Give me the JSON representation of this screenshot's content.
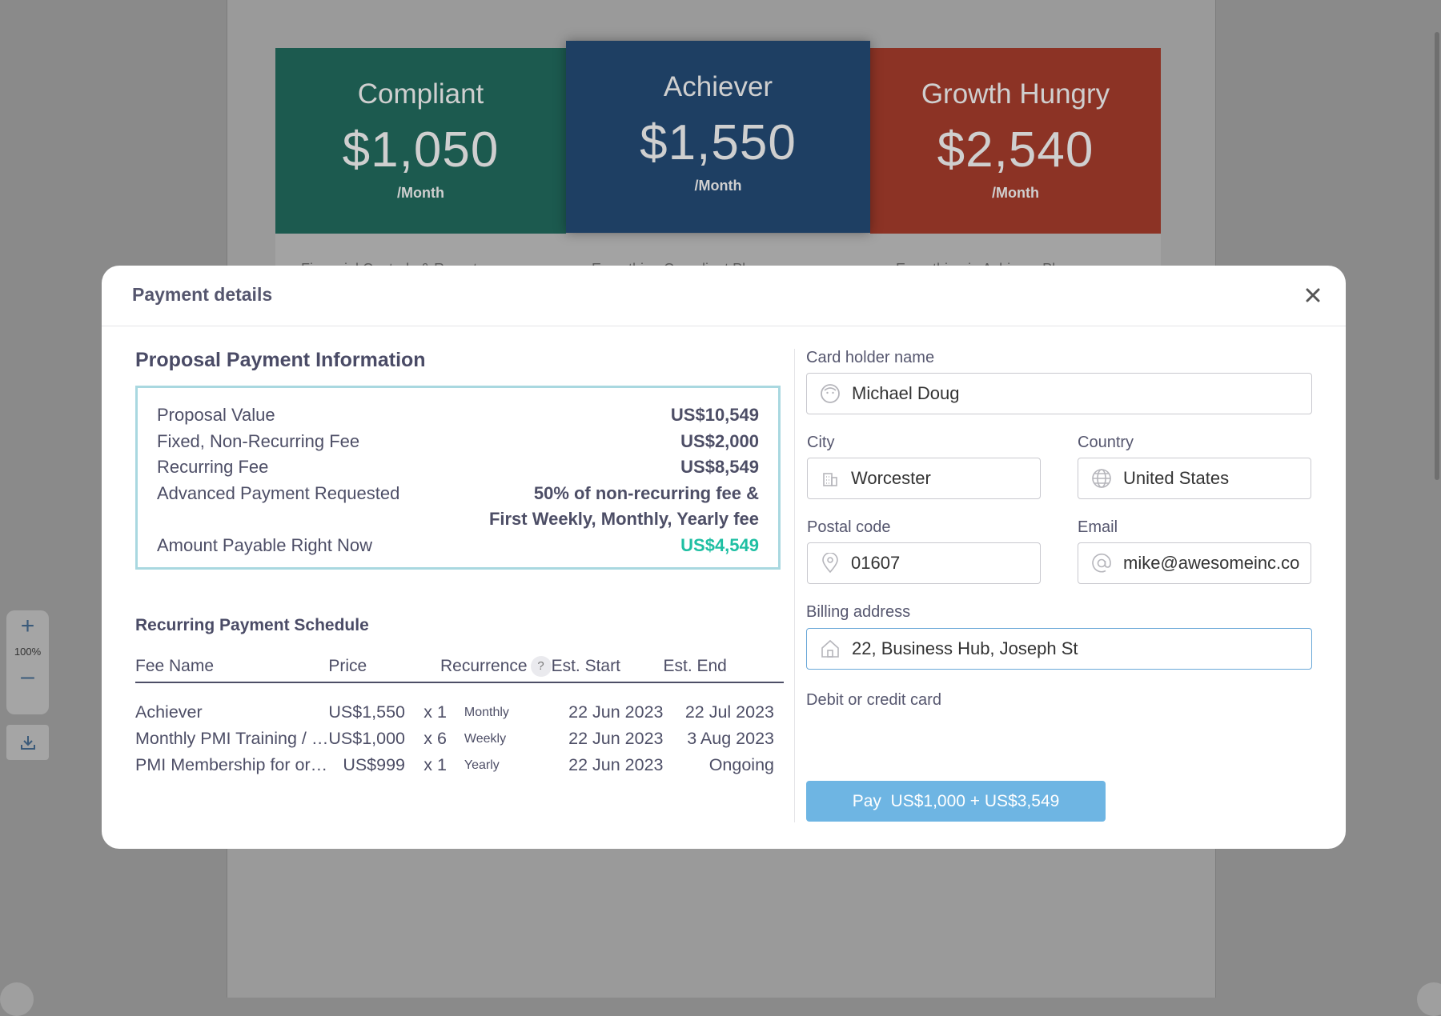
{
  "background": {
    "plans": [
      {
        "name": "Compliant",
        "price": "$1,050",
        "period": "/Month",
        "teaser": "Financial Controls & Reports",
        "color": "#1c5a4f"
      },
      {
        "name": "Achiever",
        "price": "$1,550",
        "period": "/Month",
        "teaser": "Everything Compliant Plan",
        "color": "#1e3f63"
      },
      {
        "name": "Growth Hungry",
        "price": "$2,540",
        "period": "/Month",
        "teaser": "Everything in Achiever Plan",
        "color": "#8c3325"
      }
    ],
    "zoom": {
      "plus": "+",
      "level": "100%",
      "minus": "–"
    }
  },
  "modal": {
    "title": "Payment details",
    "info": {
      "title": "Proposal Payment Information",
      "rows": [
        {
          "label": "Proposal Value",
          "value": "US$10,549"
        },
        {
          "label": "Fixed, Non-Recurring Fee",
          "value": "US$2,000"
        },
        {
          "label": "Recurring Fee",
          "value": "US$8,549"
        },
        {
          "label": "Advanced Payment Requested",
          "value": "50% of non-recurring fee &"
        },
        {
          "label": "",
          "value": "First Weekly, Monthly, Yearly fee"
        },
        {
          "label": "Amount Payable Right Now",
          "value": "US$4,549"
        }
      ]
    },
    "schedule": {
      "title": "Recurring Payment Schedule",
      "headers": {
        "fee": "Fee Name",
        "price": "Price",
        "recurrence": "Recurrence",
        "help": "?",
        "start": "Est. Start",
        "end": "Est. End"
      },
      "rows": [
        {
          "fee": "Achiever",
          "price": "US$1,550",
          "qty": "x 1",
          "freq": "Monthly",
          "start": "22 Jun 2023",
          "end": "22 Jul 2023"
        },
        {
          "fee": "Monthly PMI Training / …",
          "price": "US$1,000",
          "qty": "x 6",
          "freq": "Weekly",
          "start": "22 Jun 2023",
          "end": "3 Aug 2023"
        },
        {
          "fee": "PMI Membership for or…",
          "price": "US$999",
          "qty": "x 1",
          "freq": "Yearly",
          "start": "22 Jun 2023",
          "end": "Ongoing"
        }
      ]
    },
    "form": {
      "cardholder": {
        "label": "Card holder name",
        "value": "Michael Doug"
      },
      "city": {
        "label": "City",
        "value": "Worcester"
      },
      "country": {
        "label": "Country",
        "value": "United States"
      },
      "postal": {
        "label": "Postal code",
        "value": "01607"
      },
      "email": {
        "label": "Email",
        "value": "mike@awesomeinc.com"
      },
      "billing": {
        "label": "Billing address",
        "value": "22, Business Hub, Joseph St"
      },
      "card_label": "Debit or credit card",
      "pay_button": "Pay  US$1,000 + US$3,549"
    }
  }
}
